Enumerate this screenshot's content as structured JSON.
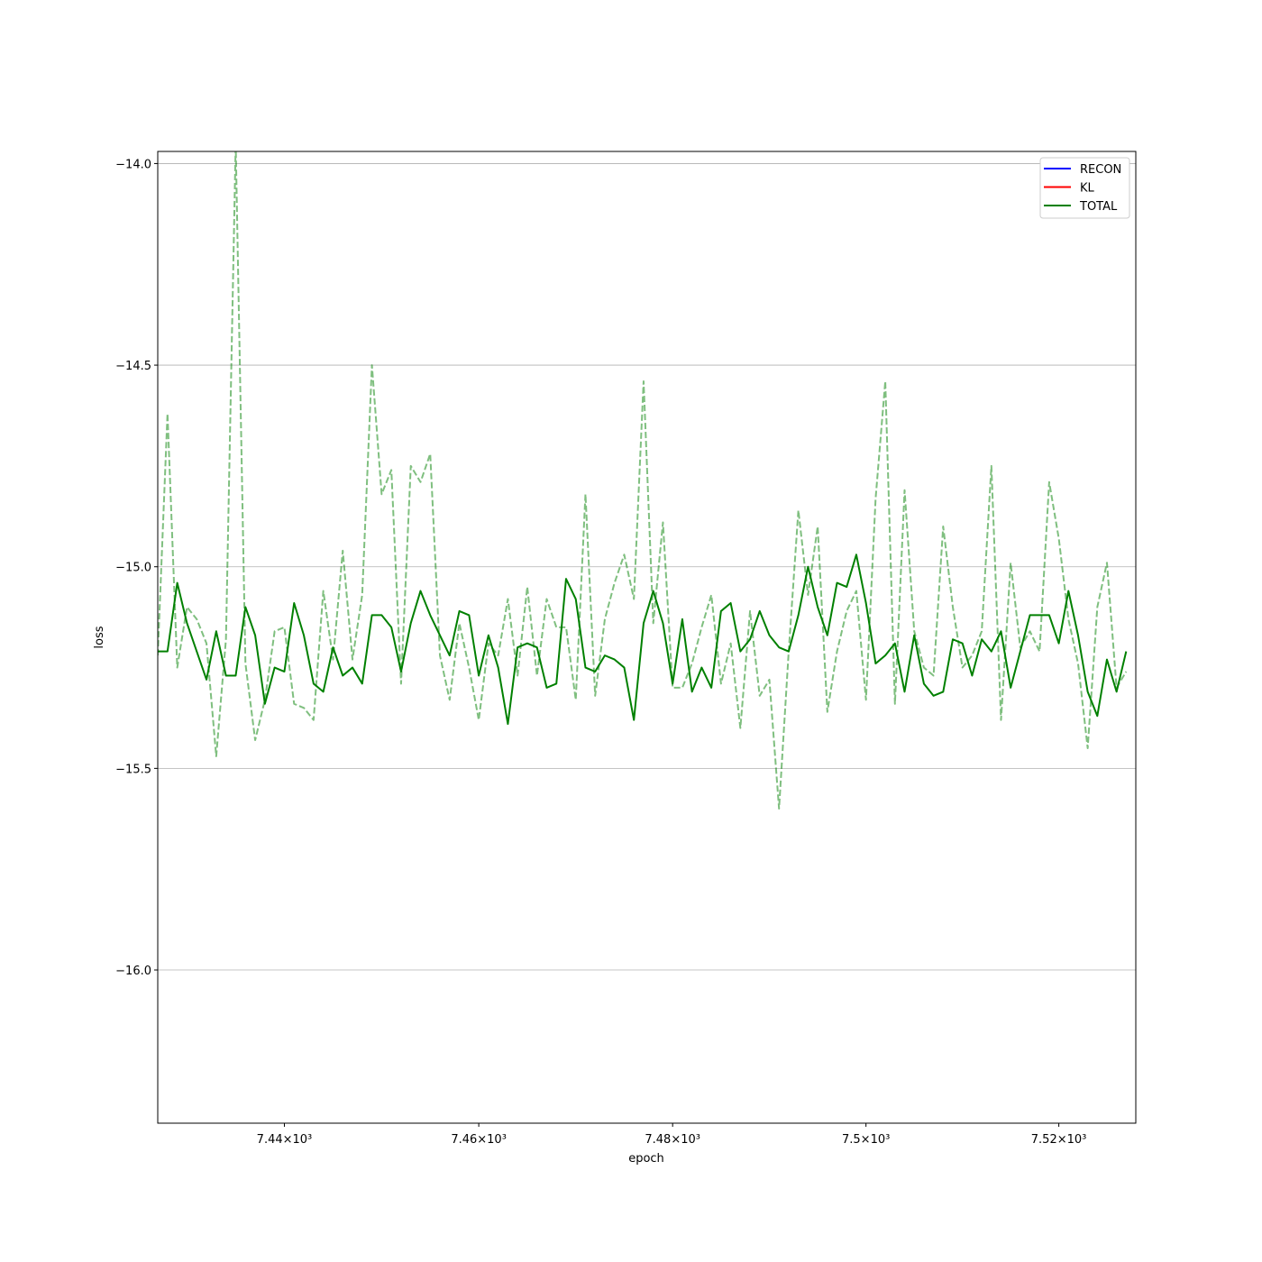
{
  "chart_data": {
    "type": "line",
    "title": "",
    "xlabel": "epoch",
    "ylabel": "loss",
    "xscale": "log",
    "xlim": [
      7427,
      7528
    ],
    "ylim": [
      -16.38,
      -13.97
    ],
    "grid": "horizontal",
    "legend_position": "top-right",
    "x_ticks": [
      {
        "value": 7440,
        "label": "7.44×10³"
      },
      {
        "value": 7460,
        "label": "7.46×10³"
      },
      {
        "value": 7480,
        "label": "7.48×10³"
      },
      {
        "value": 7500,
        "label": "7.5×10³"
      },
      {
        "value": 7520,
        "label": "7.52×10³"
      }
    ],
    "y_ticks": [
      {
        "value": -14.0,
        "label": "−14.0"
      },
      {
        "value": -14.5,
        "label": "−14.5"
      },
      {
        "value": -15.0,
        "label": "−15.0"
      },
      {
        "value": -15.5,
        "label": "−15.5"
      },
      {
        "value": -16.0,
        "label": "−16.0"
      }
    ],
    "x": [
      7427,
      7428,
      7429,
      7430,
      7431,
      7432,
      7433,
      7434,
      7435,
      7436,
      7437,
      7438,
      7439,
      7440,
      7441,
      7442,
      7443,
      7444,
      7445,
      7446,
      7447,
      7448,
      7449,
      7450,
      7451,
      7452,
      7453,
      7454,
      7455,
      7456,
      7457,
      7458,
      7459,
      7460,
      7461,
      7462,
      7463,
      7464,
      7465,
      7466,
      7467,
      7468,
      7469,
      7470,
      7471,
      7472,
      7473,
      7474,
      7475,
      7476,
      7477,
      7478,
      7479,
      7480,
      7481,
      7482,
      7483,
      7484,
      7485,
      7486,
      7487,
      7488,
      7489,
      7490,
      7491,
      7492,
      7493,
      7494,
      7495,
      7496,
      7497,
      7498,
      7499,
      7500,
      7501,
      7502,
      7503,
      7504,
      7505,
      7506,
      7507,
      7508,
      7509,
      7510,
      7511,
      7512,
      7513,
      7514,
      7515,
      7516,
      7517,
      7518,
      7519,
      7520,
      7521,
      7522,
      7523,
      7524,
      7525,
      7526,
      7527
    ],
    "legend": [
      {
        "name": "RECON",
        "color": "#0000ff"
      },
      {
        "name": "KL",
        "color": "#ff0000"
      },
      {
        "name": "TOTAL",
        "color": "#008000"
      }
    ],
    "series": [
      {
        "name": "TOTAL",
        "color": "#008000",
        "style": "solid",
        "values": [
          -15.21,
          -15.21,
          -15.04,
          -15.14,
          -15.21,
          -15.28,
          -15.16,
          -15.27,
          -15.27,
          -15.1,
          -15.17,
          -15.34,
          -15.25,
          -15.26,
          -15.09,
          -15.17,
          -15.29,
          -15.31,
          -15.2,
          -15.27,
          -15.25,
          -15.29,
          -15.12,
          -15.12,
          -15.15,
          -15.26,
          -15.14,
          -15.06,
          -15.12,
          -15.17,
          -15.22,
          -15.11,
          -15.12,
          -15.27,
          -15.17,
          -15.25,
          -15.39,
          -15.2,
          -15.19,
          -15.2,
          -15.3,
          -15.29,
          -15.03,
          -15.08,
          -15.25,
          -15.26,
          -15.22,
          -15.23,
          -15.25,
          -15.38,
          -15.14,
          -15.06,
          -15.14,
          -15.29,
          -15.13,
          -15.31,
          -15.25,
          -15.3,
          -15.11,
          -15.09,
          -15.21,
          -15.18,
          -15.11,
          -15.17,
          -15.2,
          -15.21,
          -15.12,
          -15.0,
          -15.1,
          -15.17,
          -15.04,
          -15.05,
          -14.97,
          -15.09,
          -15.24,
          -15.22,
          -15.19,
          -15.31,
          -15.17,
          -15.29,
          -15.32,
          -15.31,
          -15.18,
          -15.19,
          -15.27,
          -15.18,
          -15.21,
          -15.16,
          -15.3,
          -15.21,
          -15.12,
          -15.12,
          -15.12,
          -15.19,
          -15.06,
          -15.17,
          -15.31,
          -15.37,
          -15.23,
          -15.31,
          -15.21
        ]
      },
      {
        "name": "",
        "color": "#008000",
        "style": "dashed",
        "values": [
          -15.22,
          -14.62,
          -15.25,
          -15.1,
          -15.13,
          -15.19,
          -15.47,
          -15.18,
          -13.95,
          -15.24,
          -15.43,
          -15.33,
          -15.16,
          -15.15,
          -15.34,
          -15.35,
          -15.38,
          -15.06,
          -15.23,
          -14.96,
          -15.23,
          -15.07,
          -14.5,
          -14.82,
          -14.76,
          -15.29,
          -14.75,
          -14.79,
          -14.72,
          -15.22,
          -15.33,
          -15.14,
          -15.25,
          -15.38,
          -15.19,
          -15.22,
          -15.08,
          -15.27,
          -15.05,
          -15.27,
          -15.08,
          -15.15,
          -15.15,
          -15.33,
          -14.82,
          -15.32,
          -15.13,
          -15.04,
          -14.97,
          -15.08,
          -14.54,
          -15.14,
          -14.89,
          -15.3,
          -15.3,
          -15.24,
          -15.15,
          -15.07,
          -15.29,
          -15.19,
          -15.4,
          -15.11,
          -15.32,
          -15.28,
          -15.6,
          -15.21,
          -14.86,
          -15.07,
          -14.9,
          -15.36,
          -15.21,
          -15.11,
          -15.06,
          -15.33,
          -14.83,
          -14.54,
          -15.34,
          -14.81,
          -15.16,
          -15.25,
          -15.27,
          -14.9,
          -15.1,
          -15.25,
          -15.22,
          -15.16,
          -14.75,
          -15.38,
          -14.99,
          -15.2,
          -15.16,
          -15.21,
          -14.79,
          -14.93,
          -15.13,
          -15.24,
          -15.45,
          -15.1,
          -14.99,
          -15.3,
          -15.26
        ]
      }
    ]
  }
}
